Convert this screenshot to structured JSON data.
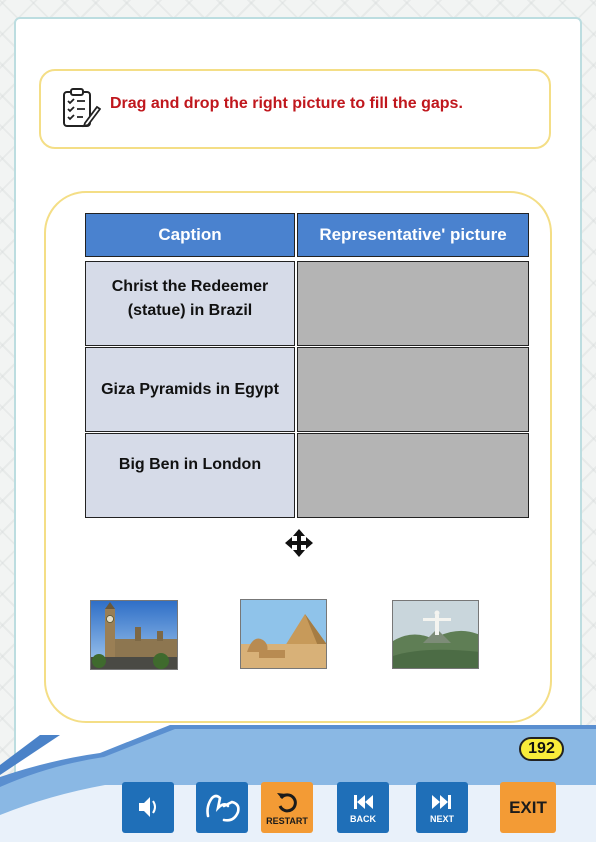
{
  "instruction": {
    "icon": "clipboard-checklist-pencil-icon",
    "text": "Drag and drop the right picture to fill the gaps."
  },
  "table": {
    "headers": [
      "Caption",
      "Representative' picture"
    ],
    "rows": [
      {
        "caption": "Christ the Redeemer (statue) in Brazil"
      },
      {
        "caption": "Giza Pyramids in Egypt"
      },
      {
        "caption": "Big Ben in London"
      }
    ]
  },
  "draggables": [
    {
      "icon": "big-ben-london-photo"
    },
    {
      "icon": "giza-pyramids-sphinx-photo"
    },
    {
      "icon": "christ-the-redeemer-photo"
    }
  ],
  "page_number": "192",
  "toolbar": {
    "sound_icon": "speaker-icon",
    "sign_icon": "sign-language-icon",
    "restart_label": "RESTART",
    "back_label": "BACK",
    "next_label": "NEXT",
    "exit_label": "EXIT"
  },
  "colors": {
    "header_blue": "#4a82cf",
    "caption_bg": "#d6dbe8",
    "drop_bg": "#b4b4b4",
    "instruction_red": "#c0171d",
    "panel_border": "#f4de86",
    "button_blue": "#1f6fb8",
    "button_orange": "#f39b35",
    "page_badge": "#f9ec3a"
  }
}
